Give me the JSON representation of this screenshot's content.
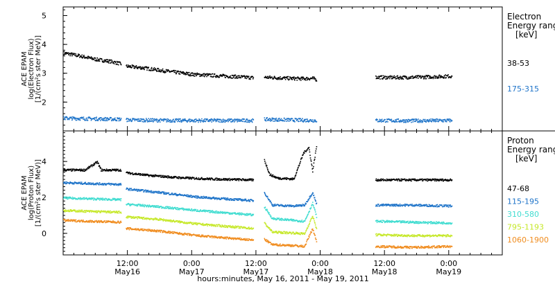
{
  "chart_data": [
    {
      "type": "scatter",
      "ylabel_lines": [
        "ACE EPAM",
        "log(Electron Flux)",
        "[1/(cm²s ster MeV)]"
      ],
      "legend_title_lines": [
        "Electron",
        "Energy ranges",
        "[keV]"
      ],
      "yticks": [
        2,
        3,
        4,
        5
      ],
      "ylim": [
        1.0,
        5.3
      ],
      "series": [
        {
          "name": "38-53",
          "color": "#000000",
          "points": [
            [
              0,
              3.72
            ],
            [
              3,
              3.62
            ],
            [
              6,
              3.5
            ],
            [
              9,
              3.42
            ],
            [
              10.8,
              3.34
            ],
            [
              11.7,
              3.26
            ],
            [
              15,
              3.2
            ],
            [
              18,
              3.12
            ],
            [
              21,
              3.05
            ],
            [
              24,
              2.98
            ],
            [
              28,
              2.94
            ],
            [
              32,
              2.9
            ],
            [
              35.5,
              2.86
            ],
            [
              37.5,
              2.88
            ],
            [
              41,
              2.85
            ],
            [
              44,
              2.83
            ],
            [
              46.5,
              2.84
            ],
            [
              47.3,
              2.8
            ],
            [
              58.3,
              2.88
            ],
            [
              62,
              2.87
            ],
            [
              66,
              2.88
            ],
            [
              70,
              2.9
            ],
            [
              72.5,
              2.92
            ]
          ],
          "gaps_after": [
            10.8,
            35.5,
            47.3
          ]
        },
        {
          "name": "175-315",
          "color": "#1f74c9",
          "points": [
            [
              0,
              1.46
            ],
            [
              5,
              1.44
            ],
            [
              10.8,
              1.42
            ],
            [
              11.7,
              1.4
            ],
            [
              20,
              1.38
            ],
            [
              28,
              1.38
            ],
            [
              35.5,
              1.38
            ],
            [
              37.5,
              1.42
            ],
            [
              42,
              1.4
            ],
            [
              47.3,
              1.38
            ],
            [
              58.3,
              1.38
            ],
            [
              65,
              1.37
            ],
            [
              72.5,
              1.38
            ]
          ],
          "gaps_after": [
            10.8,
            35.5,
            47.3
          ]
        }
      ]
    },
    {
      "type": "scatter",
      "ylabel_lines": [
        "ACE EPAM",
        "log(Proton Flux)",
        "[1/(cm²s ster MeV)]"
      ],
      "legend_title_lines": [
        "Proton",
        "Energy ranges",
        "[keV]"
      ],
      "yticks": [
        0,
        2,
        4
      ],
      "ylim": [
        -1.2,
        5.7
      ],
      "series": [
        {
          "name": "47-68",
          "color": "#000000",
          "points": [
            [
              0,
              3.55
            ],
            [
              4,
              3.55
            ],
            [
              6.3,
              4.0
            ],
            [
              7,
              3.55
            ],
            [
              10.8,
              3.55
            ],
            [
              11.7,
              3.4
            ],
            [
              16,
              3.25
            ],
            [
              22,
              3.12
            ],
            [
              28,
              3.05
            ],
            [
              35.5,
              3.0
            ],
            [
              37.5,
              4.1
            ],
            [
              38.5,
              3.3
            ],
            [
              40,
              3.1
            ],
            [
              43,
              3.05
            ],
            [
              44.8,
              4.5
            ],
            [
              45.8,
              4.8
            ],
            [
              46.5,
              3.5
            ],
            [
              47.3,
              5.0
            ],
            [
              58.3,
              3.0
            ],
            [
              65,
              3.0
            ],
            [
              72.5,
              3.0
            ]
          ],
          "gaps_after": [
            10.8,
            35.5,
            47.3
          ]
        },
        {
          "name": "115-195",
          "color": "#1f74c9",
          "points": [
            [
              0,
              2.85
            ],
            [
              5,
              2.8
            ],
            [
              10.8,
              2.75
            ],
            [
              11.7,
              2.5
            ],
            [
              18,
              2.3
            ],
            [
              25,
              2.05
            ],
            [
              30,
              1.95
            ],
            [
              35.5,
              1.85
            ],
            [
              37.5,
              2.3
            ],
            [
              39,
              1.6
            ],
            [
              43,
              1.55
            ],
            [
              45,
              1.6
            ],
            [
              46.5,
              2.3
            ],
            [
              47.3,
              1.6
            ],
            [
              58.3,
              1.6
            ],
            [
              65,
              1.6
            ],
            [
              72.5,
              1.55
            ]
          ],
          "gaps_after": [
            10.8,
            35.5,
            47.3
          ]
        },
        {
          "name": "310-580",
          "color": "#3fdcd0",
          "points": [
            [
              0,
              2.0
            ],
            [
              5,
              1.95
            ],
            [
              10.8,
              1.9
            ],
            [
              11.7,
              1.65
            ],
            [
              18,
              1.5
            ],
            [
              25,
              1.3
            ],
            [
              35.5,
              1.05
            ],
            [
              37.5,
              1.5
            ],
            [
              39,
              0.85
            ],
            [
              43,
              0.75
            ],
            [
              45,
              0.7
            ],
            [
              46.5,
              1.7
            ],
            [
              47.3,
              0.9
            ],
            [
              58.3,
              0.7
            ],
            [
              65,
              0.65
            ],
            [
              72.5,
              0.6
            ]
          ],
          "gaps_after": [
            10.8,
            35.5,
            47.3
          ]
        },
        {
          "name": "795-1193",
          "color": "#c6e82a",
          "points": [
            [
              0,
              1.3
            ],
            [
              5,
              1.25
            ],
            [
              10.8,
              1.2
            ],
            [
              11.7,
              0.95
            ],
            [
              18,
              0.8
            ],
            [
              25,
              0.55
            ],
            [
              35.5,
              0.3
            ],
            [
              37.5,
              0.6
            ],
            [
              39,
              0.1
            ],
            [
              43,
              0.05
            ],
            [
              45,
              0.0
            ],
            [
              46.5,
              1.0
            ],
            [
              47.3,
              0.2
            ],
            [
              58.3,
              -0.05
            ],
            [
              65,
              -0.1
            ],
            [
              72.5,
              -0.1
            ]
          ],
          "gaps_after": [
            10.8,
            35.5,
            47.3
          ]
        },
        {
          "name": "1060-1900",
          "color": "#f08c1e",
          "points": [
            [
              0,
              0.75
            ],
            [
              5,
              0.7
            ],
            [
              10.8,
              0.65
            ],
            [
              11.7,
              0.3
            ],
            [
              18,
              0.15
            ],
            [
              25,
              -0.1
            ],
            [
              35.5,
              -0.35
            ],
            [
              37.5,
              -0.3
            ],
            [
              39,
              -0.6
            ],
            [
              43,
              -0.65
            ],
            [
              45,
              -0.7
            ],
            [
              46.5,
              0.3
            ],
            [
              47.3,
              -0.5
            ],
            [
              58.3,
              -0.7
            ],
            [
              65,
              -0.75
            ],
            [
              72.5,
              -0.7
            ]
          ],
          "gaps_after": [
            10.8,
            35.5,
            47.3
          ]
        }
      ]
    }
  ],
  "x_axis": {
    "label": "hours:minutes, May 16, 2011 - May 19, 2011",
    "range_hours": [
      0,
      82
    ],
    "major_ticks": [
      {
        "h": 12,
        "time": "12:00",
        "day": "May16"
      },
      {
        "h": 24,
        "time": "0:00",
        "day": "May17"
      },
      {
        "h": 36,
        "time": "12:00",
        "day": "May17"
      },
      {
        "h": 48,
        "time": "0:00",
        "day": "May18"
      },
      {
        "h": 60,
        "time": "12:00",
        "day": "May18"
      },
      {
        "h": 72,
        "time": "0:00",
        "day": "May19"
      }
    ]
  }
}
